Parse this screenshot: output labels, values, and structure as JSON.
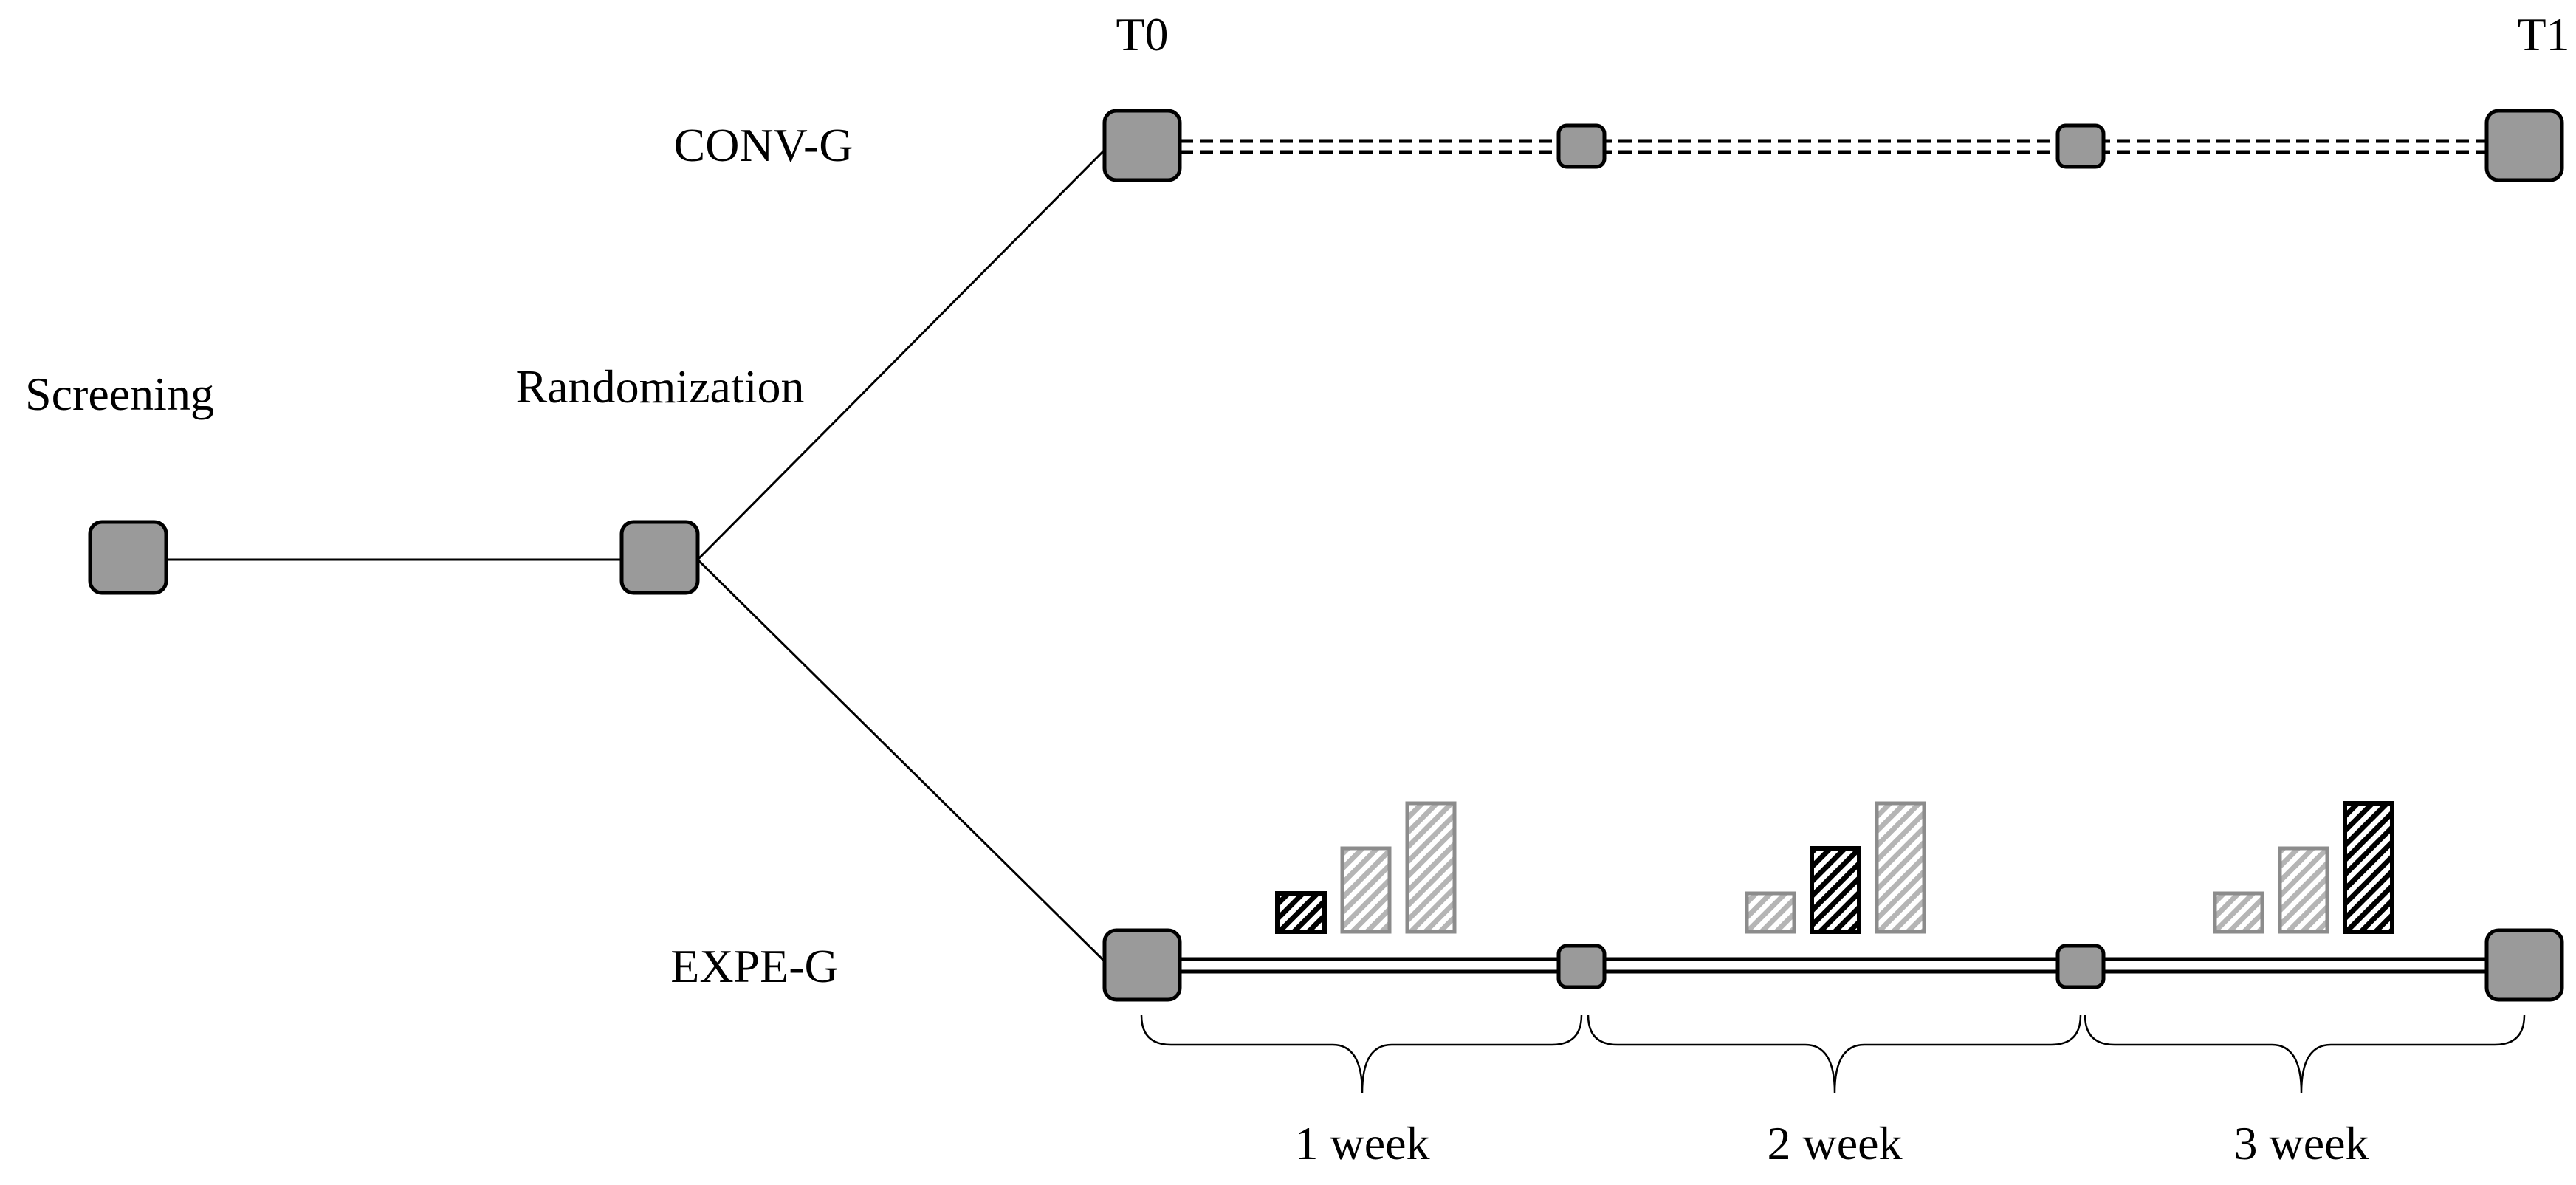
{
  "labels": {
    "screening": "Screening",
    "randomization": "Randomization",
    "conv_group": "CONV-G",
    "expe_group": "EXPE-G",
    "t0": "T0",
    "t1": "T1"
  },
  "weeks": [
    "1 week",
    "2 week",
    "3 week"
  ],
  "week_bar_sets": [
    {
      "week": "1 week",
      "bars": [
        {
          "level": 1,
          "style": "dark"
        },
        {
          "level": 2,
          "style": "light"
        },
        {
          "level": 3,
          "style": "light"
        }
      ]
    },
    {
      "week": "2 week",
      "bars": [
        {
          "level": 1,
          "style": "light"
        },
        {
          "level": 2,
          "style": "dark"
        },
        {
          "level": 3,
          "style": "light"
        }
      ]
    },
    {
      "week": "3 week",
      "bars": [
        {
          "level": 1,
          "style": "light"
        },
        {
          "level": 2,
          "style": "light"
        },
        {
          "level": 3,
          "style": "dark"
        }
      ]
    }
  ],
  "colors": {
    "node_fill": "#9a9a9a",
    "node_stroke": "#000000",
    "hatch_dark": "#000000",
    "hatch_light": "#b5b5b5",
    "bar_light_border": "#8c8c8c"
  }
}
